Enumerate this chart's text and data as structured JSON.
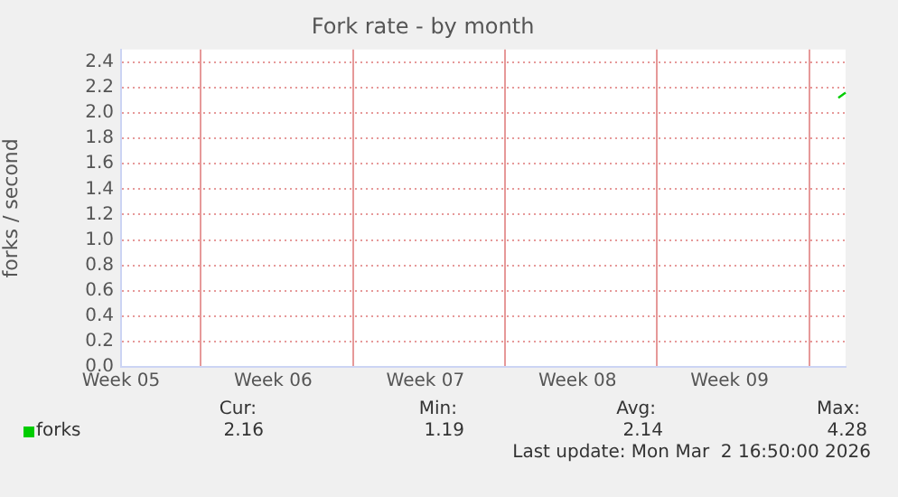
{
  "chart_data": {
    "type": "line",
    "title": "Fork rate - by month",
    "ylabel": "forks / second",
    "categories": [
      "Week 05",
      null,
      null,
      null,
      null,
      null,
      null,
      null,
      null,
      null,
      null,
      null,
      null,
      null,
      null,
      null,
      null,
      null,
      null,
      null,
      null,
      "Week 06",
      null,
      null,
      null,
      null,
      null,
      null,
      null,
      null,
      null,
      null,
      null,
      null,
      null,
      null,
      null,
      null,
      null,
      null,
      null,
      null,
      "Week 07",
      null,
      null,
      null,
      null,
      null,
      null,
      null,
      null,
      null,
      null,
      null,
      null,
      null,
      null,
      null,
      null,
      null,
      null,
      null,
      null,
      "Week 08",
      null,
      null,
      null,
      null,
      null,
      null,
      null,
      null,
      null,
      null,
      null,
      null,
      null,
      null,
      null,
      null,
      null,
      null,
      null,
      null,
      "Week 09",
      null,
      null,
      null,
      null,
      null,
      null,
      null,
      null,
      null,
      null,
      null,
      null,
      null,
      null,
      null,
      null
    ],
    "ylim": [
      0,
      2.5
    ],
    "yticks": [
      {
        "value": 0,
        "label": "0.0"
      },
      {
        "value": 0.2,
        "label": "0.2"
      },
      {
        "value": 0.4,
        "label": "0.4"
      },
      {
        "value": 0.6,
        "label": "0.6"
      },
      {
        "value": 0.8,
        "label": "0.8"
      },
      {
        "value": 1,
        "label": "1.0"
      },
      {
        "value": 1.2,
        "label": "1.2"
      },
      {
        "value": 1.4,
        "label": "1.4"
      },
      {
        "value": 1.6,
        "label": "1.6"
      },
      {
        "value": 1.8,
        "label": "1.8"
      },
      {
        "value": 2,
        "label": "2.0"
      },
      {
        "value": 2.2,
        "label": "2.2"
      },
      {
        "value": 2.4,
        "label": "2.4"
      }
    ],
    "series": [
      {
        "name": "forks",
        "color": "#00cc00",
        "values": [
          null,
          null,
          null,
          null,
          null,
          null,
          null,
          null,
          null,
          null,
          null,
          null,
          null,
          null,
          null,
          null,
          null,
          null,
          null,
          null,
          null,
          null,
          null,
          null,
          null,
          null,
          null,
          null,
          null,
          null,
          null,
          null,
          null,
          null,
          null,
          null,
          null,
          null,
          null,
          null,
          null,
          null,
          null,
          null,
          null,
          null,
          null,
          null,
          null,
          null,
          null,
          null,
          null,
          null,
          null,
          null,
          null,
          null,
          null,
          null,
          null,
          null,
          null,
          null,
          null,
          null,
          null,
          null,
          null,
          null,
          null,
          null,
          null,
          null,
          null,
          null,
          null,
          null,
          null,
          null,
          null,
          null,
          null,
          null,
          null,
          null,
          null,
          null,
          null,
          null,
          null,
          null,
          null,
          null,
          null,
          null,
          null,
          null,
          null,
          2.12,
          2.16
        ]
      }
    ],
    "grid": true,
    "legend": "bottom left",
    "marker": "none",
    "line_style": "solid",
    "annotations": [
      "Cur:",
      "Min:",
      "Avg:",
      "Max:",
      "2.16",
      "1.19",
      "2.14",
      "4.28",
      "Last update: Mon Mar  2 16:50:00 2026"
    ]
  }
}
